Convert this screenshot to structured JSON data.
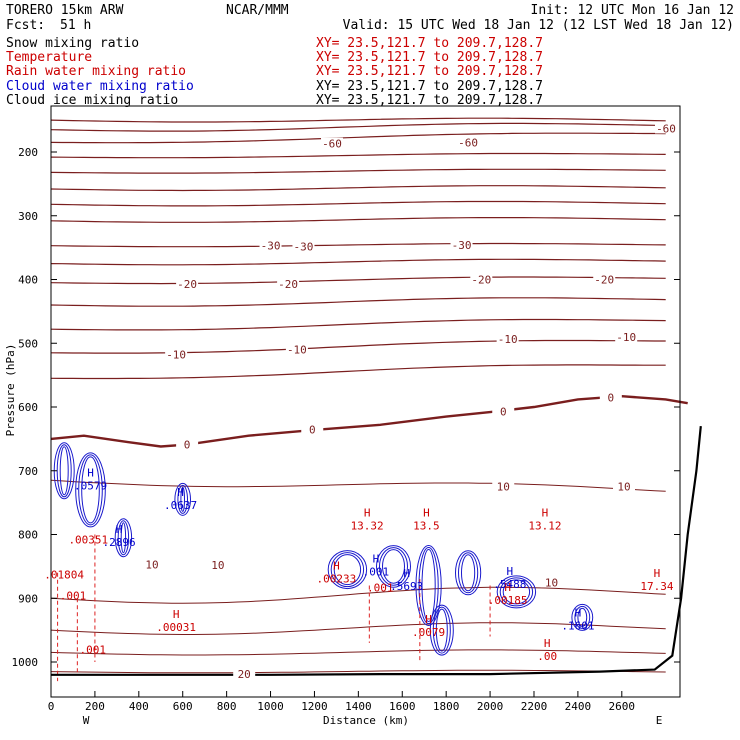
{
  "header": {
    "model": "TORERO  15km ARW",
    "org": "NCAR/MMM",
    "init": "Init: 12 UTC Mon 16 Jan 12",
    "fcst_label": "Fcst:",
    "fcst_value": "51 h",
    "valid": "Valid: 15 UTC Wed 18 Jan 12 (12 LST Wed 18 Jan 12)"
  },
  "legend": [
    {
      "name": "Snow mixing ratio",
      "color": "#000000",
      "xy": "XY=  23.5,121.7 to 209.7,128.7",
      "xy_color": "#cc0000"
    },
    {
      "name": "Temperature",
      "color": "#cc0000",
      "xy": "XY=  23.5,121.7 to 209.7,128.7",
      "xy_color": "#cc0000"
    },
    {
      "name": "Rain water mixing ratio",
      "color": "#cc0000",
      "xy": "XY=  23.5,121.7 to 209.7,128.7",
      "xy_color": "#cc0000"
    },
    {
      "name": "Cloud water mixing ratio",
      "color": "#0000cc",
      "xy": "XY=  23.5,121.7 to 209.7,128.7",
      "xy_color": "#000000"
    },
    {
      "name": "Cloud ice mixing ratio",
      "color": "#000000",
      "xy": "XY=  23.5,121.7 to 209.7,128.7",
      "xy_color": "#000000"
    }
  ],
  "colors": {
    "temperature": "#7a1e1e",
    "freezing": "#7a1e1e",
    "cloud_water": "#1a1acc",
    "rain": "#dd2222",
    "terrain": "#000000",
    "frame": "#000000"
  },
  "chart_data": {
    "type": "cross-section",
    "xlabel": "Distance (km)",
    "ylabel": "Pressure (hPa)",
    "xlim": [
      0,
      2780
    ],
    "ylim": [
      1050,
      100
    ],
    "x_ticks": [
      "0",
      "200",
      "400",
      "600",
      "800",
      "1000",
      "1200",
      "1400",
      "1600",
      "1800",
      "2000",
      "2200",
      "2400",
      "2600"
    ],
    "y_ticks": [
      "200",
      "300",
      "400",
      "500",
      "600",
      "700",
      "800",
      "900",
      "1000"
    ],
    "end_labels": {
      "left": "W",
      "right": "E"
    },
    "isotherm_labels": [
      {
        "text": "-60",
        "x": 1280,
        "p": 187
      },
      {
        "text": "-60",
        "x": 1900,
        "p": 185
      },
      {
        "text": "-60",
        "x": 2850,
        "p": 163
      },
      {
        "text": "-30",
        "x": 1000,
        "p": 347
      },
      {
        "text": "-30",
        "x": 1150,
        "p": 348
      },
      {
        "text": "-30",
        "x": 1870,
        "p": 346
      },
      {
        "text": "-20",
        "x": 620,
        "p": 407
      },
      {
        "text": "-20",
        "x": 1080,
        "p": 407
      },
      {
        "text": "-20",
        "x": 1960,
        "p": 400
      },
      {
        "text": "-20",
        "x": 2520,
        "p": 400
      },
      {
        "text": "-10",
        "x": 570,
        "p": 518
      },
      {
        "text": "-10",
        "x": 1120,
        "p": 510
      },
      {
        "text": "-10",
        "x": 2080,
        "p": 493
      },
      {
        "text": "-10",
        "x": 2620,
        "p": 490
      },
      {
        "text": "0",
        "x": 620,
        "p": 659
      },
      {
        "text": "0",
        "x": 1190,
        "p": 635
      },
      {
        "text": "0",
        "x": 2060,
        "p": 607
      },
      {
        "text": "0",
        "x": 2550,
        "p": 585
      },
      {
        "text": "10",
        "x": 460,
        "p": 847
      },
      {
        "text": "10",
        "x": 760,
        "p": 848
      },
      {
        "text": "10",
        "x": 2060,
        "p": 725
      },
      {
        "text": "10",
        "x": 2610,
        "p": 725
      },
      {
        "text": "10",
        "x": 2280,
        "p": 875
      },
      {
        "text": "20",
        "x": 880,
        "p": 1019
      }
    ],
    "freezing_level": [
      [
        0,
        650
      ],
      [
        150,
        645
      ],
      [
        350,
        655
      ],
      [
        500,
        662
      ],
      [
        620,
        659
      ],
      [
        900,
        645
      ],
      [
        1200,
        636
      ],
      [
        1500,
        628
      ],
      [
        1800,
        615
      ],
      [
        2000,
        608
      ],
      [
        2200,
        600
      ],
      [
        2400,
        588
      ],
      [
        2600,
        583
      ],
      [
        2800,
        588
      ],
      [
        2900,
        594
      ]
    ],
    "terrain": [
      [
        0,
        1020
      ],
      [
        500,
        1020
      ],
      [
        1000,
        1020
      ],
      [
        1500,
        1019
      ],
      [
        2000,
        1019
      ],
      [
        2500,
        1015
      ],
      [
        2750,
        1012
      ],
      [
        2830,
        990
      ],
      [
        2870,
        900
      ],
      [
        2900,
        800
      ],
      [
        2940,
        700
      ],
      [
        2960,
        630
      ]
    ],
    "maxima": [
      {
        "label": "H",
        "value": "13.32",
        "color": "#cc0000",
        "x": 1440,
        "p": 778
      },
      {
        "label": "H",
        "value": "13.5",
        "color": "#cc0000",
        "x": 1710,
        "p": 778
      },
      {
        "label": "H",
        "value": "13.12",
        "color": "#cc0000",
        "x": 2250,
        "p": 778
      },
      {
        "label": "H",
        "value": "17.34",
        "color": "#cc0000",
        "x": 2760,
        "p": 873
      },
      {
        "label": "H",
        "value": ".00",
        "color": "#cc0000",
        "x": 2260,
        "p": 983
      },
      {
        "label": "H",
        "value": ".00031",
        "color": "#cc0000",
        "x": 570,
        "p": 937
      },
      {
        "label": "H",
        "value": ".0079",
        "color": "#cc0000",
        "x": 1720,
        "p": 945
      },
      {
        "label": "H",
        "value": ".00185",
        "color": "#cc0000",
        "x": 2080,
        "p": 895
      },
      {
        "label": "H",
        "value": ".00233",
        "color": "#cc0000",
        "x": 1300,
        "p": 861
      },
      {
        "label": "H",
        "value": ".0579",
        "color": "#0000cc",
        "x": 180,
        "p": 715
      },
      {
        "label": "H",
        "value": ".0637",
        "color": "#0000cc",
        "x": 590,
        "p": 746
      },
      {
        "label": "H",
        "value": ".2896",
        "color": "#0000cc",
        "x": 310,
        "p": 804
      },
      {
        "label": "H",
        "value": ".001",
        "color": "#0000cc",
        "x": 1480,
        "p": 850
      },
      {
        "label": "H",
        "value": ".5693",
        "color": "#0000cc",
        "x": 1620,
        "p": 873
      },
      {
        "label": "H",
        "value": ".5488",
        "color": "#0000cc",
        "x": 2090,
        "p": 870
      },
      {
        "label": "H",
        "value": ".1601",
        "color": "#0000cc",
        "x": 2400,
        "p": 935
      }
    ],
    "small_labels": [
      {
        "text": ".00351",
        "color": "#cc0000",
        "x": 170,
        "p": 808
      },
      {
        "text": ".01804",
        "color": "#cc0000",
        "x": 60,
        "p": 863
      },
      {
        "text": ".001",
        "color": "#cc0000",
        "x": 100,
        "p": 896
      },
      {
        "text": ".001",
        "color": "#cc0000",
        "x": 190,
        "p": 980
      },
      {
        "text": ".001",
        "color": "#cc0000",
        "x": 1500,
        "p": 883
      }
    ]
  }
}
